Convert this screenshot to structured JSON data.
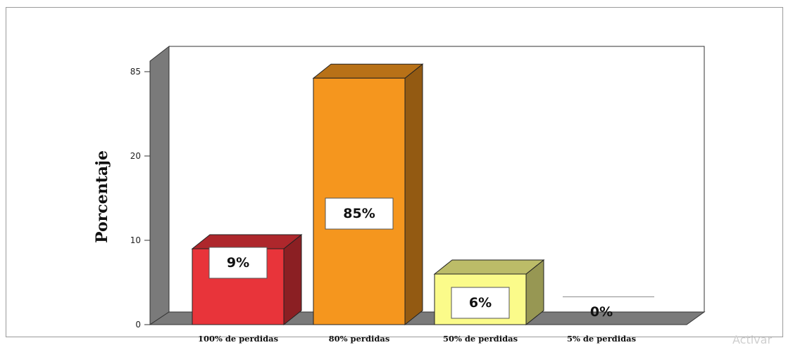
{
  "chart_data": {
    "type": "bar",
    "title": "",
    "xlabel": "",
    "ylabel": "Porcentaje",
    "categories": [
      "100% de perdidas",
      "80% perdidas",
      "50% de perdidas",
      "5% de perdidas"
    ],
    "values": [
      9,
      85,
      6,
      0
    ],
    "data_labels": [
      "9%",
      "85%",
      "6%",
      "0%"
    ],
    "y_ticks": [
      "0",
      "10",
      "20",
      "85"
    ],
    "colors": [
      "#e8343a",
      "#f5961e",
      "#fbfb8a",
      "#ffffff"
    ],
    "style": "3d-bar",
    "grid": false,
    "legend": "none"
  },
  "watermark": "Activar"
}
